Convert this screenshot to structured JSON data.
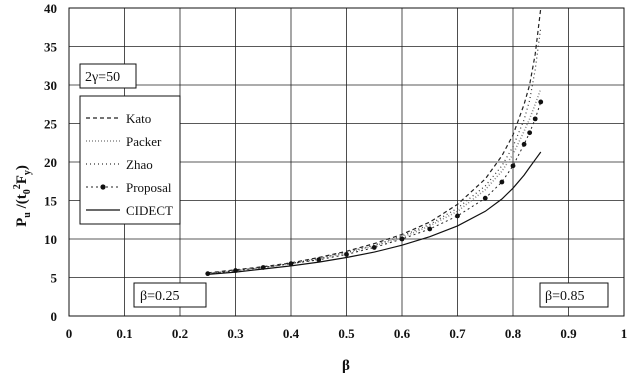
{
  "chart_data": {
    "type": "line",
    "title": "",
    "xlabel": "β",
    "ylabel_main": "P",
    "ylabel_sub": "u",
    "ylabel_rest_a": " /(t",
    "ylabel_sub2": "0",
    "ylabel_sup": "2",
    "ylabel_rest_b": "F",
    "ylabel_sub3": "y",
    "ylabel_end": ")",
    "xlim": [
      0,
      1
    ],
    "ylim": [
      0,
      40
    ],
    "x_ticks": [
      0,
      0.1,
      0.2,
      0.3,
      0.4,
      0.5,
      0.6,
      0.7,
      0.8,
      0.9,
      1
    ],
    "x_tick_labels": [
      "0",
      "0.1",
      "0.2",
      "0.3",
      "0.4",
      "0.5",
      "0.6",
      "0.7",
      "0.8",
      "0.9",
      "1"
    ],
    "y_ticks": [
      0,
      5,
      10,
      15,
      20,
      25,
      30,
      35,
      40
    ],
    "y_tick_labels": [
      "0",
      "5",
      "10",
      "15",
      "20",
      "25",
      "30",
      "35",
      "40"
    ],
    "grid": true,
    "legend_position": "left",
    "annotations": {
      "gamma": "2γ=50",
      "beta_low": "β=0.25",
      "beta_high": "β=0.85"
    },
    "series": [
      {
        "name": "Kato",
        "style": "dash",
        "x": [
          0.25,
          0.3,
          0.35,
          0.4,
          0.45,
          0.5,
          0.55,
          0.6,
          0.65,
          0.7,
          0.75,
          0.78,
          0.8,
          0.82,
          0.83,
          0.84,
          0.85
        ],
        "y": [
          5.6,
          6.0,
          6.4,
          6.9,
          7.6,
          8.4,
          9.4,
          10.6,
          12.2,
          14.5,
          17.8,
          20.8,
          23.5,
          27.5,
          30.0,
          34.0,
          40.0
        ]
      },
      {
        "name": "Packer",
        "style": "dot-light",
        "x": [
          0.25,
          0.3,
          0.35,
          0.4,
          0.45,
          0.5,
          0.55,
          0.6,
          0.65,
          0.7,
          0.75,
          0.78,
          0.8,
          0.82,
          0.83,
          0.84,
          0.85
        ],
        "y": [
          5.5,
          5.9,
          6.3,
          6.8,
          7.4,
          8.2,
          9.1,
          10.2,
          11.7,
          13.6,
          16.4,
          18.8,
          21.0,
          24.0,
          25.6,
          27.5,
          29.5
        ]
      },
      {
        "name": "Zhao",
        "style": "dot",
        "x": [
          0.25,
          0.3,
          0.35,
          0.4,
          0.45,
          0.5,
          0.55,
          0.6,
          0.65,
          0.7,
          0.75,
          0.78,
          0.8,
          0.82,
          0.83,
          0.84,
          0.85
        ],
        "y": [
          5.5,
          5.9,
          6.3,
          6.8,
          7.5,
          8.3,
          9.2,
          10.4,
          11.9,
          14.0,
          16.9,
          19.5,
          22.0,
          25.5,
          28.0,
          32.0,
          37.5
        ]
      },
      {
        "name": "Proposal",
        "style": "marker",
        "x": [
          0.25,
          0.3,
          0.35,
          0.4,
          0.45,
          0.5,
          0.55,
          0.6,
          0.65,
          0.7,
          0.75,
          0.78,
          0.8,
          0.82,
          0.83,
          0.84,
          0.85
        ],
        "y": [
          5.5,
          5.9,
          6.3,
          6.8,
          7.3,
          8.0,
          8.9,
          10.0,
          11.3,
          13.0,
          15.3,
          17.4,
          19.5,
          22.3,
          23.8,
          25.6,
          27.8
        ]
      },
      {
        "name": "CIDECT",
        "style": "solid",
        "x": [
          0.25,
          0.3,
          0.35,
          0.4,
          0.45,
          0.5,
          0.55,
          0.6,
          0.65,
          0.7,
          0.75,
          0.78,
          0.8,
          0.82,
          0.83,
          0.84,
          0.85
        ],
        "y": [
          5.4,
          5.7,
          6.1,
          6.5,
          7.0,
          7.6,
          8.3,
          9.2,
          10.3,
          11.7,
          13.6,
          15.2,
          16.6,
          18.3,
          19.3,
          20.3,
          21.3
        ]
      }
    ]
  }
}
